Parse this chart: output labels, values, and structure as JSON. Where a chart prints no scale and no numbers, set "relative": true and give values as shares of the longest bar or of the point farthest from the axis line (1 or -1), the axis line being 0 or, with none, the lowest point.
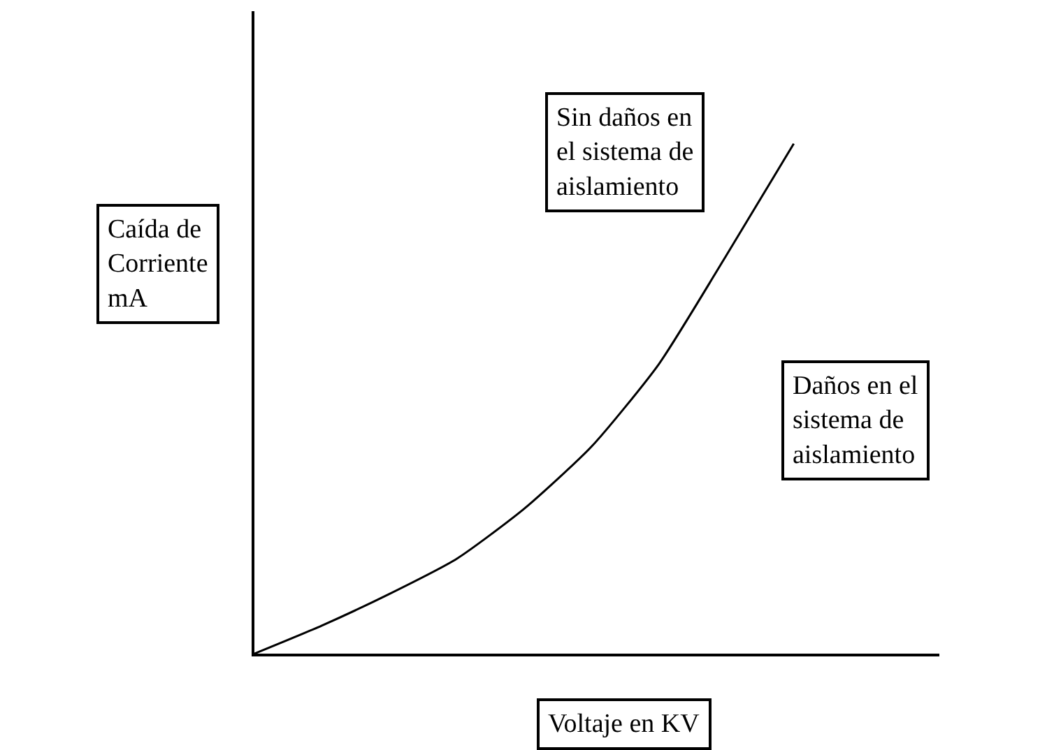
{
  "chart_data": {
    "type": "line",
    "relative": true,
    "xlabel": "Voltaje en KV",
    "ylabel": "Caída de\nCorriente\nmA",
    "categories": [
      null,
      null,
      null,
      null,
      null,
      null,
      null,
      null,
      null
    ],
    "series": [
      {
        "color": "#000000",
        "values": [
          0,
          0.055,
          0.117,
          0.186,
          0.284,
          0.406,
          0.568,
          0.781,
          1
        ]
      }
    ],
    "annotations": [
      "Sin daños en\nel sistema de\naislamiento",
      "Daños en el\nsistema de\naislamiento"
    ],
    "marker": "none",
    "line_style": "solid"
  }
}
